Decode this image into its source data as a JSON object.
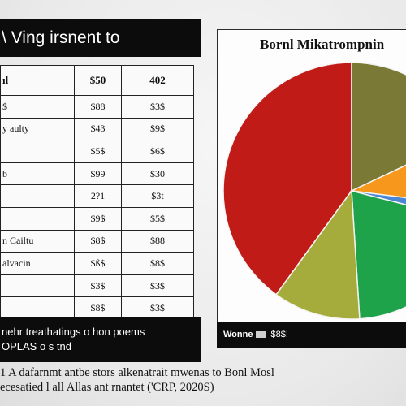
{
  "left_title": "\\ Ving irsnent to",
  "table": {
    "header": [
      "ıl",
      "$50",
      "402"
    ],
    "rows": [
      [
        "$",
        "$88",
        "$3$"
      ],
      [
        "y aulty",
        "$43",
        "$9$"
      ],
      [
        "",
        "$5$",
        "$6$"
      ],
      [
        "b",
        "$99",
        "$30"
      ],
      [
        "",
        "2?1",
        "$3t"
      ],
      [
        "",
        "$9$",
        "$5$"
      ],
      [
        "n Cailtu",
        "$8$",
        "$88"
      ],
      [
        "alvacin",
        "$ß$",
        "$8$"
      ],
      [
        "",
        "$3$",
        "$3$"
      ],
      [
        "",
        "$8$",
        "$3$"
      ]
    ]
  },
  "note": [
    "nehr treathatings o hon poems",
    "OPLAS o s tnd"
  ],
  "chart_title": "Bornl Mikatrompnin",
  "legend": {
    "key": "Wonne",
    "value": "$8$!"
  },
  "caption": [
    "1 A dafarnmt antbe stors alkenatrait mwenas to Bonl Mosl",
    "ecesatied l all Allas ant rnantet ('CRP, 2020S)"
  ],
  "colors": {
    "red": "#c11b17",
    "olive": "#7a7a36",
    "orange": "#f7981d",
    "blue": "#4a86d4",
    "green": "#1fa34a",
    "yellowgreen": "#a5ac3b"
  },
  "chart_data": {
    "type": "pie",
    "title": "Bornl Mikatrompnin",
    "slices": [
      {
        "value": 40,
        "color": "#c11b17"
      },
      {
        "value": 18,
        "color": "#7a7a36"
      },
      {
        "value": 9,
        "color": "#f7981d"
      },
      {
        "value": 2,
        "color": "#4a86d4"
      },
      {
        "value": 20,
        "color": "#1fa34a"
      },
      {
        "value": 11,
        "color": "#a5ac3b"
      }
    ]
  }
}
